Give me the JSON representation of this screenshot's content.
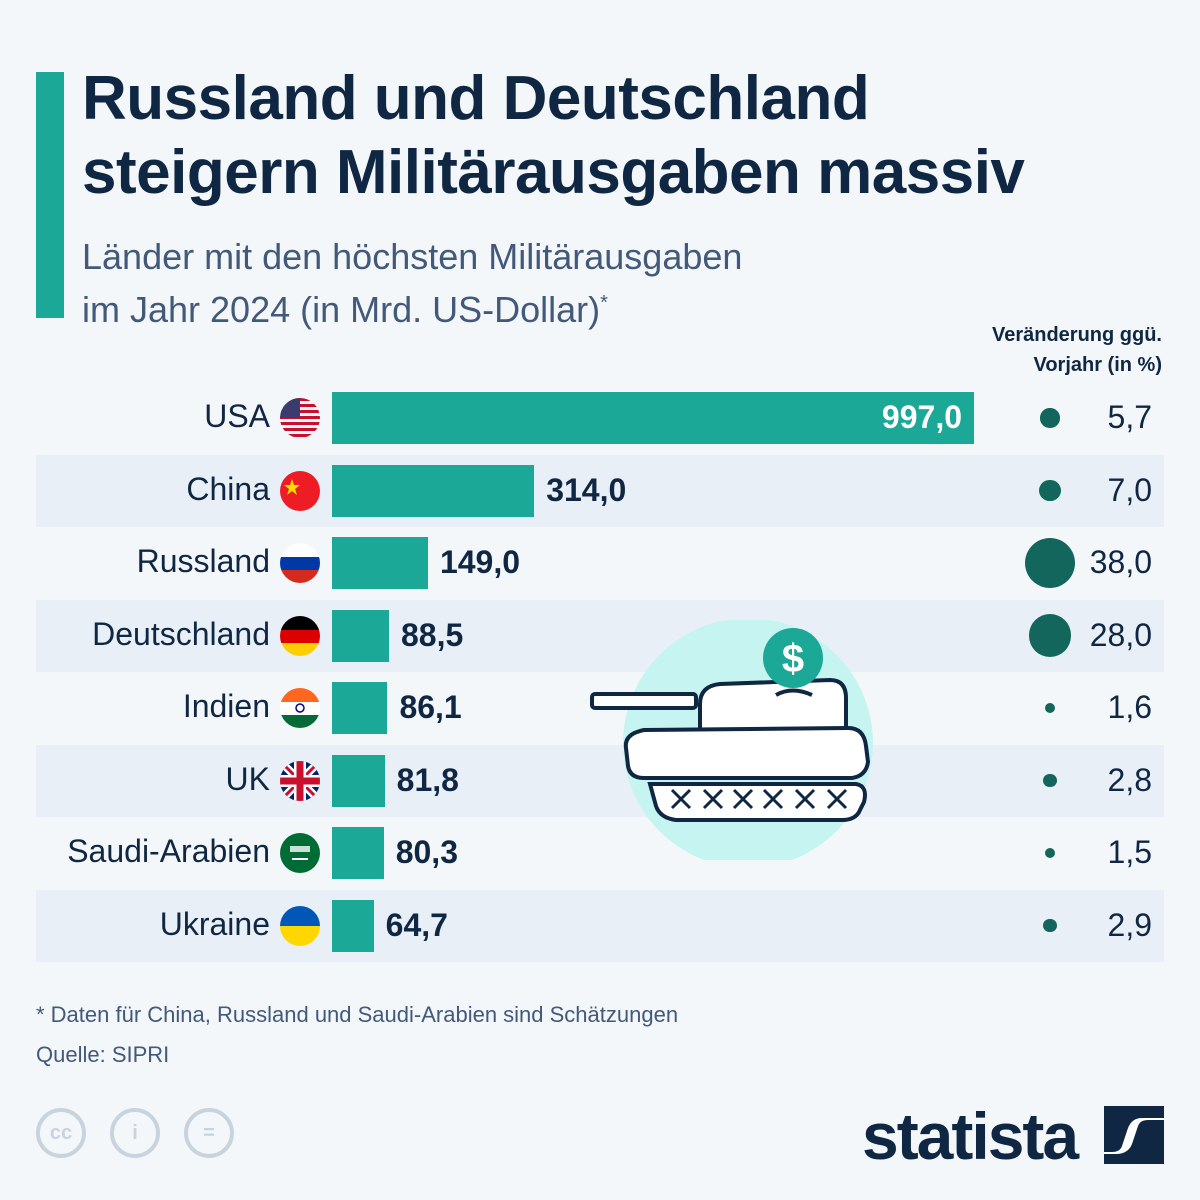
{
  "header": {
    "title_line1": "Russland und Deutschland",
    "title_line2": "steigern Militärausgaben massiv",
    "subtitle_line1": "Länder mit den höchsten Militärausgaben",
    "subtitle_line2": "im Jahr 2024 (in Mrd. US-Dollar)",
    "subtitle_marker": "*",
    "change_header_line1": "Veränderung ggü.",
    "change_header_line2": "Vorjahr (in %)"
  },
  "chart_data": {
    "type": "bar",
    "orientation": "horizontal",
    "title": "Russland und Deutschland steigern Militärausgaben massiv",
    "subtitle": "Länder mit den höchsten Militärausgaben im Jahr 2024 (in Mrd. US-Dollar)*",
    "categories": [
      "USA",
      "China",
      "Russland",
      "Deutschland",
      "Indien",
      "UK",
      "Saudi-Arabien",
      "Ukraine"
    ],
    "values": [
      997.0,
      314.0,
      149.0,
      88.5,
      86.1,
      81.8,
      80.3,
      64.7
    ],
    "value_labels": [
      "997,0",
      "314,0",
      "149,0",
      "88,5",
      "86,1",
      "81,8",
      "80,3",
      "64,7"
    ],
    "unit": "Mrd. US-Dollar",
    "xlim": [
      0,
      997
    ],
    "grid": false,
    "secondary_series": {
      "name": "Veränderung ggü. Vorjahr (in %)",
      "type": "bubble",
      "values": [
        5.7,
        7.0,
        38.0,
        28.0,
        1.6,
        2.8,
        1.5,
        2.9
      ],
      "value_labels": [
        "5,7",
        "7,0",
        "38,0",
        "28,0",
        "1,6",
        "2,8",
        "1,5",
        "2,9"
      ]
    },
    "flags": [
      "us-flag-icon",
      "china-flag-icon",
      "russia-flag-icon",
      "germany-flag-icon",
      "india-flag-icon",
      "uk-flag-icon",
      "saudi-arabia-flag-icon",
      "ukraine-flag-icon"
    ]
  },
  "colors": {
    "bar": "#1ba896",
    "bubble": "#12665b",
    "accent": "#1ba896",
    "text_dark": "#0f2742",
    "text_muted": "#42597a",
    "row_alt": "#e9eff7",
    "background": "#f4f7fa"
  },
  "illustration": {
    "icon": "tank-with-dollar-icon"
  },
  "footer": {
    "footnote": "* Daten für China, Russland und Saudi-Arabien sind Schätzungen",
    "source": "Quelle: SIPRI",
    "license_icons": [
      "cc-icon",
      "attribution-icon",
      "no-derivatives-icon"
    ],
    "license_labels": [
      "cc",
      "i",
      "="
    ],
    "brand": "statista"
  }
}
